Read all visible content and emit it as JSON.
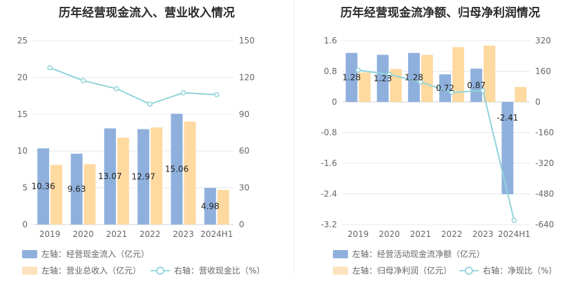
{
  "colors": {
    "blue": "#8fb0dc",
    "orange": "#fed9a0",
    "teal": "#8fd4da"
  },
  "left": {
    "title": "历年经营现金流入、营业收入情况",
    "legend": {
      "bar1": "左轴：经营现金流入（亿元）",
      "bar2": "左轴：营业总收入（亿元）",
      "line": "右轴：营收现金比（%）"
    }
  },
  "right": {
    "title": "历年经营现金流净额、归母净利润情况",
    "legend": {
      "bar1": "左轴：经营活动现金流净额（亿元）",
      "bar2": "左轴：归母净利润（亿元）",
      "line": "右轴：净现比（%）"
    }
  },
  "chart_data": [
    {
      "type": "bar",
      "title": "历年经营现金流入、营业收入情况",
      "categories": [
        "2019",
        "2020",
        "2021",
        "2022",
        "2023",
        "2024H1"
      ],
      "y_left": {
        "ylim": [
          0,
          25
        ],
        "ticks": [
          "0",
          "5",
          "10",
          "15",
          "20",
          "25"
        ]
      },
      "y_right": {
        "ylim": [
          0,
          150
        ],
        "ticks": [
          "0",
          "30",
          "60",
          "90",
          "120",
          "150"
        ]
      },
      "series": [
        {
          "name": "左轴：经营现金流入（亿元）",
          "axis": "left",
          "kind": "bar",
          "values": [
            10.36,
            9.63,
            13.07,
            12.97,
            15.06,
            4.98
          ],
          "labels": [
            "10.36",
            "9.63",
            "13.07",
            "12.97",
            "15.06",
            "4.98"
          ]
        },
        {
          "name": "左轴：营业总收入（亿元）",
          "axis": "left",
          "kind": "bar",
          "values": [
            8.1,
            8.2,
            11.8,
            13.2,
            14.0,
            4.7
          ]
        },
        {
          "name": "右轴：营收现金比（%）",
          "axis": "right",
          "kind": "line",
          "values": [
            127.9,
            117.4,
            110.8,
            98.2,
            107.5,
            105.9
          ]
        }
      ]
    },
    {
      "type": "bar",
      "title": "历年经营现金流净额、归母净利润情况",
      "categories": [
        "2019",
        "2020",
        "2021",
        "2022",
        "2023",
        "2024H1"
      ],
      "y_left": {
        "ylim": [
          -3.2,
          1.6
        ],
        "ticks": [
          "-3.2",
          "-2.4",
          "-1.6",
          "-0.8",
          "0",
          "0.8",
          "1.6"
        ]
      },
      "y_right": {
        "ylim": [
          -640,
          320
        ],
        "ticks": [
          "-640",
          "-480",
          "-320",
          "-160",
          "0",
          "160",
          "320"
        ]
      },
      "series": [
        {
          "name": "左轴：经营活动现金流净额（亿元）",
          "axis": "left",
          "kind": "bar",
          "values": [
            1.28,
            1.23,
            1.28,
            0.72,
            0.87,
            -2.41
          ],
          "labels": [
            "1.28",
            "1.23",
            "1.28",
            "0.72",
            "0.87",
            "-2.41"
          ]
        },
        {
          "name": "左轴：归母净利润（亿元）",
          "axis": "left",
          "kind": "bar",
          "values": [
            0.77,
            0.86,
            1.23,
            1.43,
            1.47,
            0.39
          ]
        },
        {
          "name": "右轴：净现比（%）",
          "axis": "right",
          "kind": "line",
          "values": [
            166,
            143,
            104,
            50,
            59,
            -618
          ]
        }
      ]
    }
  ]
}
